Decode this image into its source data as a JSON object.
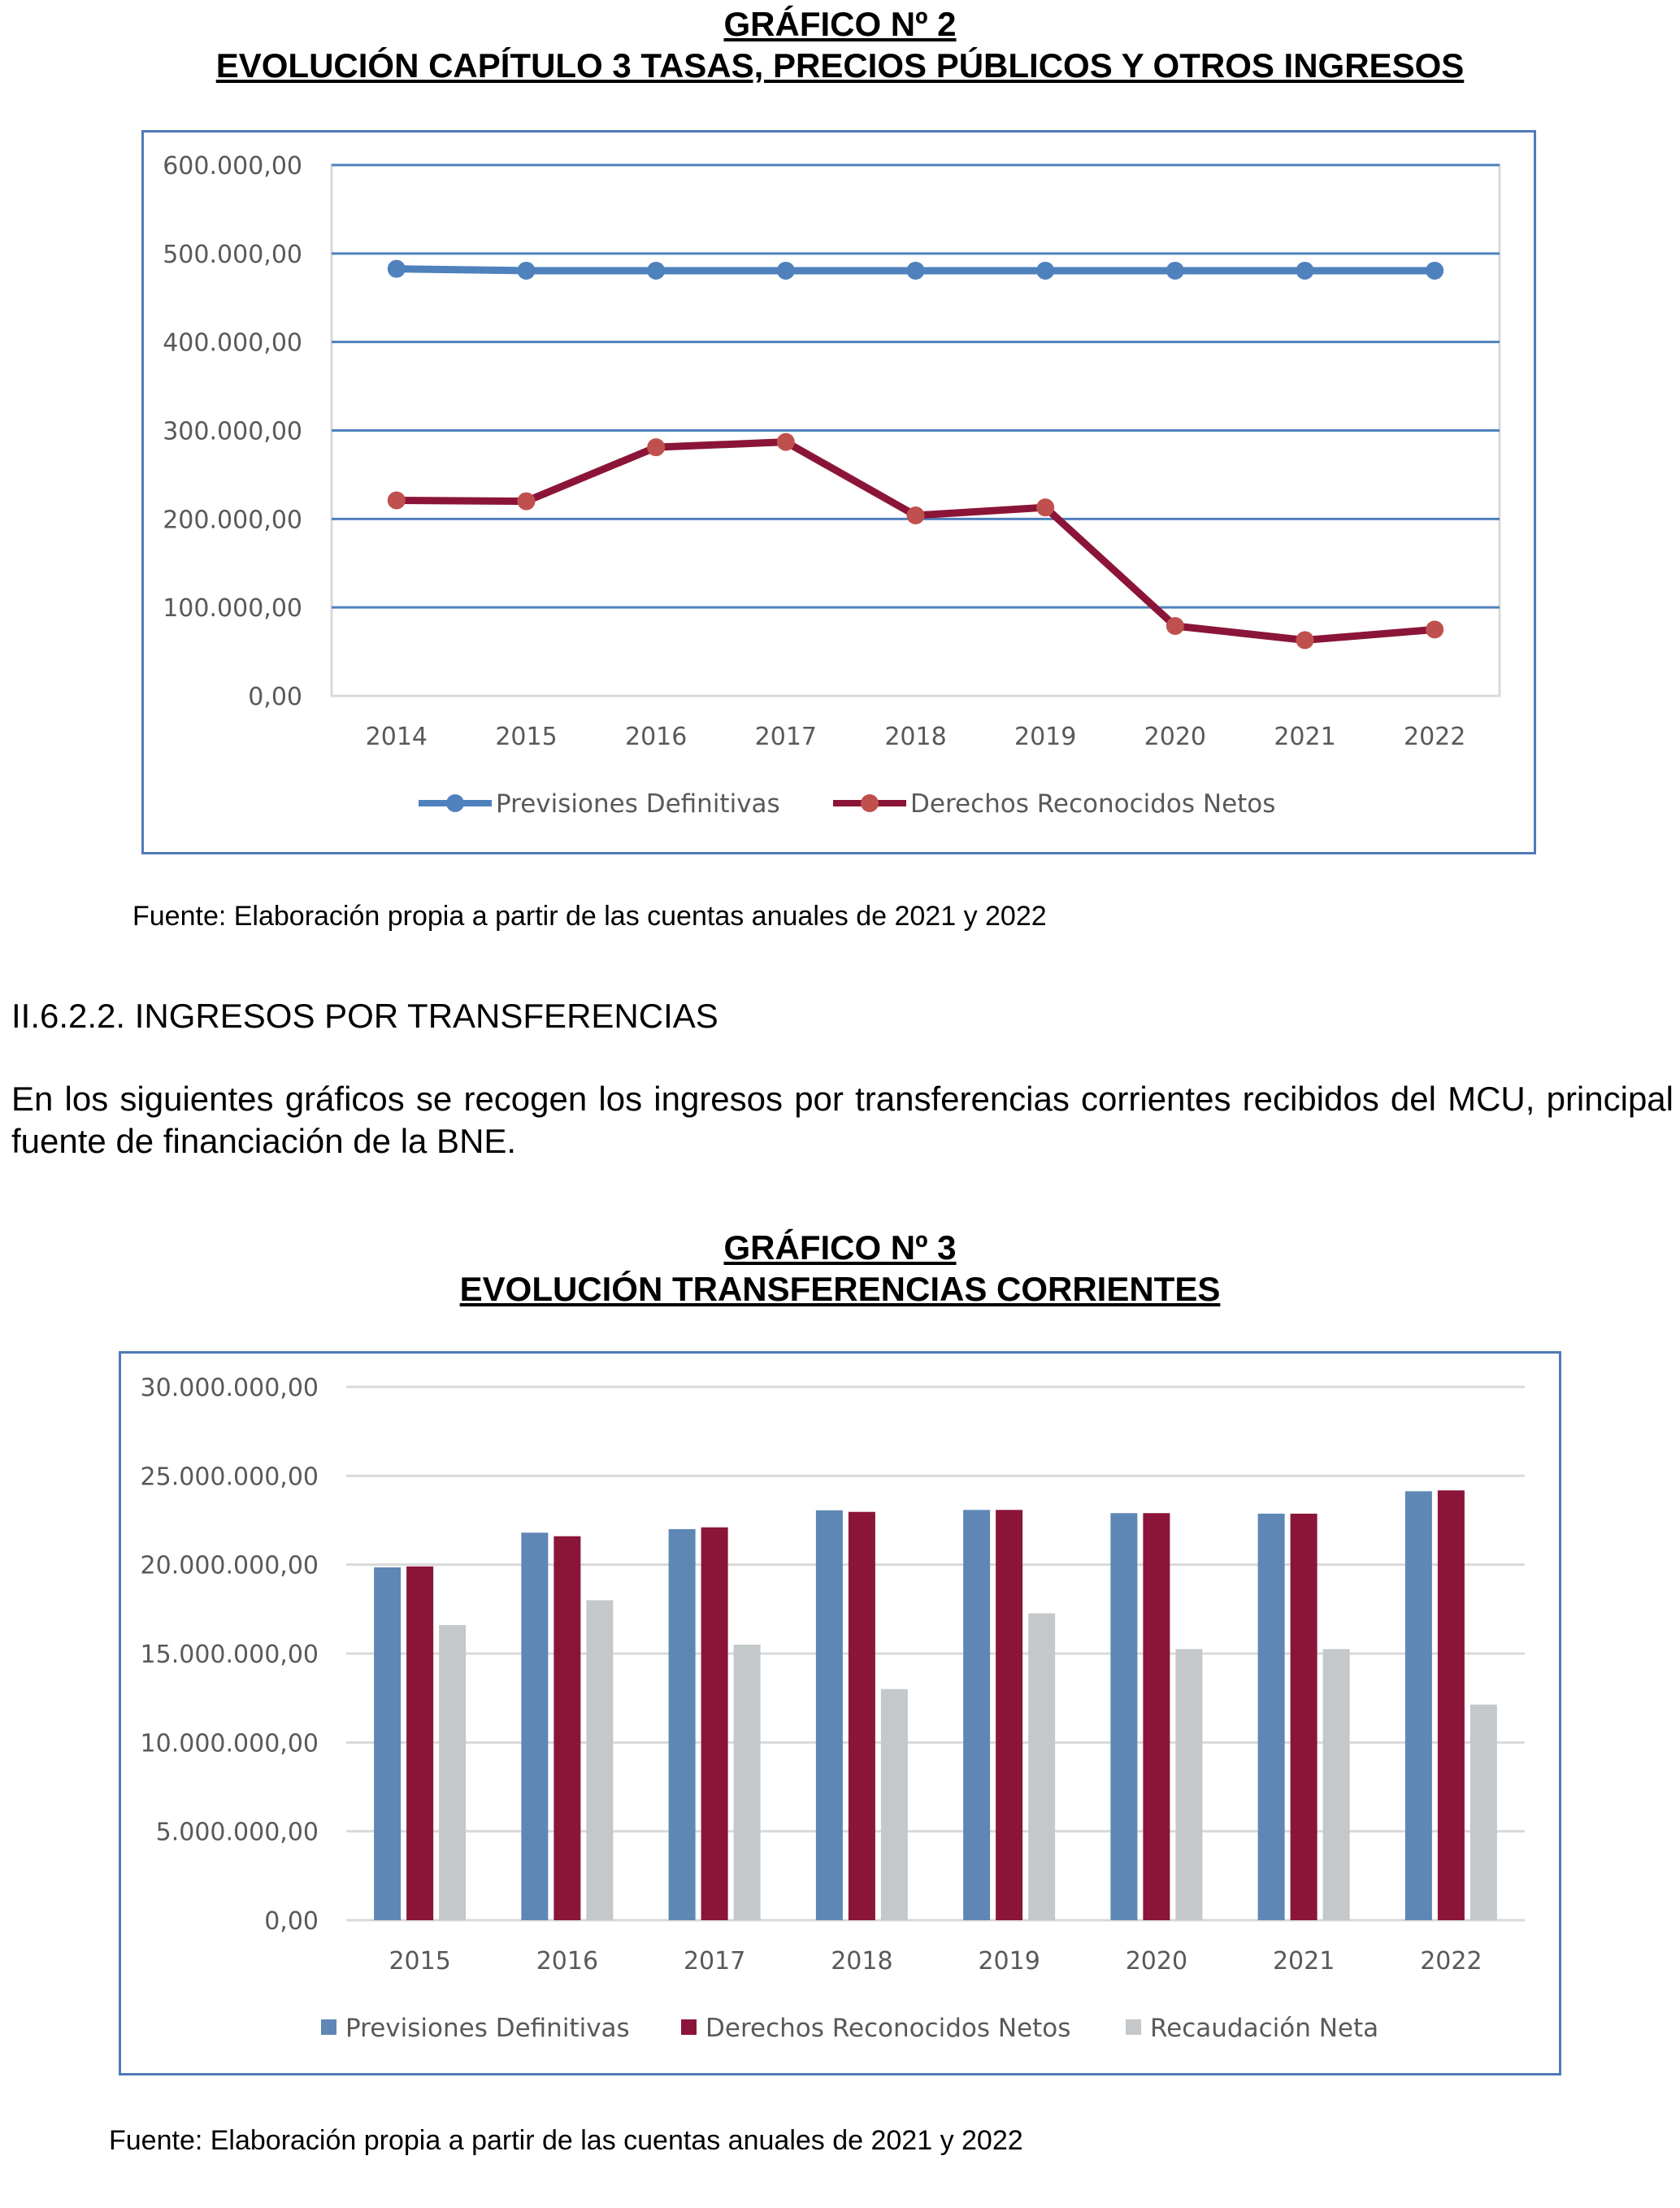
{
  "chart_data": [
    {
      "type": "line",
      "title": "GRÁFICO Nº 2",
      "subtitle": "EVOLUCIÓN CAPÍTULO 3 TASAS, PRECIOS PÚBLICOS Y OTROS INGRESOS",
      "categories": [
        "2014",
        "2015",
        "2016",
        "2017",
        "2018",
        "2019",
        "2020",
        "2021",
        "2022"
      ],
      "yticks": [
        "0,00",
        "100.000,00",
        "200.000,00",
        "300.000,00",
        "400.000,00",
        "500.000,00",
        "600.000,00"
      ],
      "ylim": [
        0,
        600000
      ],
      "grid": true,
      "legend": "bottom",
      "series": [
        {
          "name": "Previsiones Definitivas",
          "color": "#4f81bd",
          "marker": "#4f81bd",
          "values": [
            482700,
            480600,
            480600,
            480600,
            480600,
            480600,
            480600,
            480600,
            480600
          ]
        },
        {
          "name": "Derechos Reconocidos Netos",
          "color": "#8b1538",
          "marker": "#c0504d",
          "values": [
            221000,
            220000,
            281000,
            287000,
            204000,
            213000,
            79000,
            63000,
            75000
          ]
        }
      ]
    },
    {
      "type": "bar",
      "title": "GRÁFICO Nº 3",
      "subtitle": "EVOLUCIÓN TRANSFERENCIAS CORRIENTES",
      "categories": [
        "2015",
        "2016",
        "2017",
        "2018",
        "2019",
        "2020",
        "2021",
        "2022"
      ],
      "yticks": [
        "0,00",
        "5.000.000,00",
        "10.000.000,00",
        "15.000.000,00",
        "20.000.000,00",
        "25.000.000,00",
        "30.000.000,00"
      ],
      "ylim": [
        0,
        30000000
      ],
      "grid": true,
      "legend": "bottom",
      "series": [
        {
          "name": "Previsiones Definitivas",
          "color": "#5f87b5",
          "values": [
            19850000,
            21800000,
            22000000,
            23060000,
            23080000,
            22900000,
            22870000,
            24130000
          ]
        },
        {
          "name": "Derechos Reconocidos Netos",
          "color": "#8b1538",
          "values": [
            19900000,
            21600000,
            22100000,
            22970000,
            23080000,
            22900000,
            22870000,
            24180000
          ]
        },
        {
          "name": "Recaudación Neta",
          "color": "#c4c8ca",
          "values": [
            16600000,
            18000000,
            15500000,
            13000000,
            17260000,
            15250000,
            15250000,
            12130000
          ]
        }
      ]
    }
  ],
  "source1": "Fuente: Elaboración propia a partir de las cuentas anuales de 2021 y 2022",
  "heading": "II.6.2.2.  INGRESOS POR TRANSFERENCIAS",
  "paragraph": "En los siguientes gráficos se recogen los ingresos por transferencias corrientes recibidos del MCU, principal fuente de financiación de la BNE.",
  "source2": "Fuente: Elaboración propia a partir de las cuentas anuales de 2021 y 2022"
}
